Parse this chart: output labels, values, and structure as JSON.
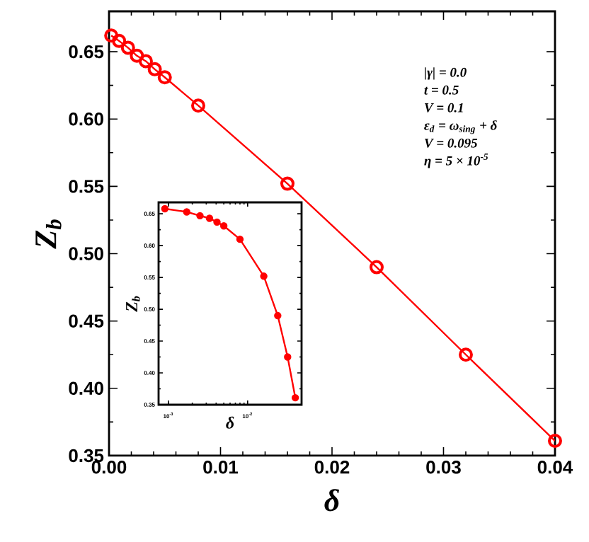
{
  "chart_data": [
    {
      "type": "line",
      "xlabel": "δ",
      "ylabel": "Z$_{b}$",
      "marker": "circle",
      "line_style": "solid",
      "color": "#ff0000",
      "x": [
        0.0002,
        0.0009,
        0.0017,
        0.0025,
        0.0033,
        0.0041,
        0.005,
        0.008,
        0.016,
        0.024,
        0.032,
        0.04
      ],
      "values": [
        0.662,
        0.658,
        0.653,
        0.647,
        0.643,
        0.637,
        0.631,
        0.61,
        0.552,
        0.49,
        0.425,
        0.361
      ],
      "xlim": [
        0,
        0.04
      ],
      "ylim": [
        0.35,
        0.68
      ],
      "xticks": [
        {
          "value": 0,
          "label": "0.00"
        },
        0.01,
        0.02,
        0.03,
        {
          "value": 0.04,
          "label": "0.04"
        }
      ],
      "yticks": [
        0.35,
        {
          "value": 0.4,
          "label": "0.40"
        },
        0.45,
        {
          "value": 0.5,
          "label": "0.50"
        },
        0.55,
        {
          "value": 0.6,
          "label": "0.60"
        },
        0.65
      ],
      "annotations": [
        "|γ| = 0.0",
        "t = 0.5",
        "V = 0.1",
        "ε$_{d}$ = ω$_{sing}$ + δ",
        "V = 0.095",
        "η = 5 × 10$^{-5}$"
      ]
    },
    {
      "type": "line",
      "xlabel": "δ",
      "ylabel": "Z$_{b}$",
      "marker": "circle",
      "line_style": "solid",
      "color": "#ff0000",
      "log": "x",
      "x": [
        0.0009,
        0.0017,
        0.0025,
        0.0033,
        0.0041,
        0.005,
        0.008,
        0.016,
        0.024,
        0.032,
        0.04
      ],
      "values": [
        0.658,
        0.653,
        0.647,
        0.643,
        0.637,
        0.631,
        0.61,
        0.552,
        0.49,
        0.425,
        0.361
      ],
      "xlim": [
        0.00075,
        0.048
      ],
      "ylim": [
        0.35,
        0.668
      ],
      "xticks": [
        {
          "value": 0.001,
          "label": "10$^{-3}$"
        },
        {
          "value": 0.01,
          "label": "10$^{-2}$"
        }
      ],
      "yticks": [
        0.35,
        {
          "value": 0.4,
          "label": "0.40"
        },
        0.45,
        {
          "value": 0.5,
          "label": "0.50"
        },
        0.55,
        {
          "value": 0.6,
          "label": "0.60"
        },
        0.65
      ]
    }
  ]
}
